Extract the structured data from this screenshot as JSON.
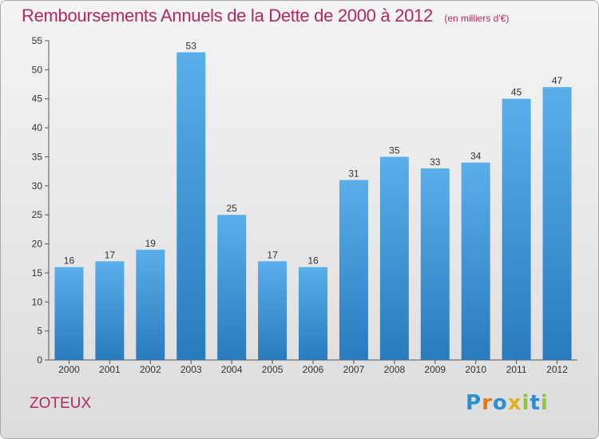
{
  "header": {
    "title": "Remboursements Annuels de la Dette de 2000 à 2012",
    "subtitle": "(en milliers d'€)"
  },
  "footer": {
    "location": "ZOTEUX",
    "logo": "Proxiti"
  },
  "colors": {
    "title": "#b2285f",
    "bar_top": "#5aaeea",
    "bar_bottom": "#2a7bbd",
    "logo_letters": [
      "#2d8fd0",
      "#e07a1a",
      "#2d8fd0",
      "#e0b020",
      "#8cc63f",
      "#2d8fd0",
      "#8cc63f"
    ]
  },
  "chart_data": {
    "type": "bar",
    "categories": [
      "2000",
      "2001",
      "2002",
      "2003",
      "2004",
      "2005",
      "2006",
      "2007",
      "2008",
      "2009",
      "2010",
      "2011",
      "2012"
    ],
    "values": [
      16,
      17,
      19,
      53,
      25,
      17,
      16,
      31,
      35,
      33,
      34,
      45,
      47
    ],
    "yticks": [
      "0",
      "5",
      "10",
      "15",
      "20",
      "25",
      "30",
      "35",
      "40",
      "45",
      "50",
      "55"
    ],
    "ylim": [
      0,
      55
    ],
    "grid": false,
    "data_labels": true
  }
}
